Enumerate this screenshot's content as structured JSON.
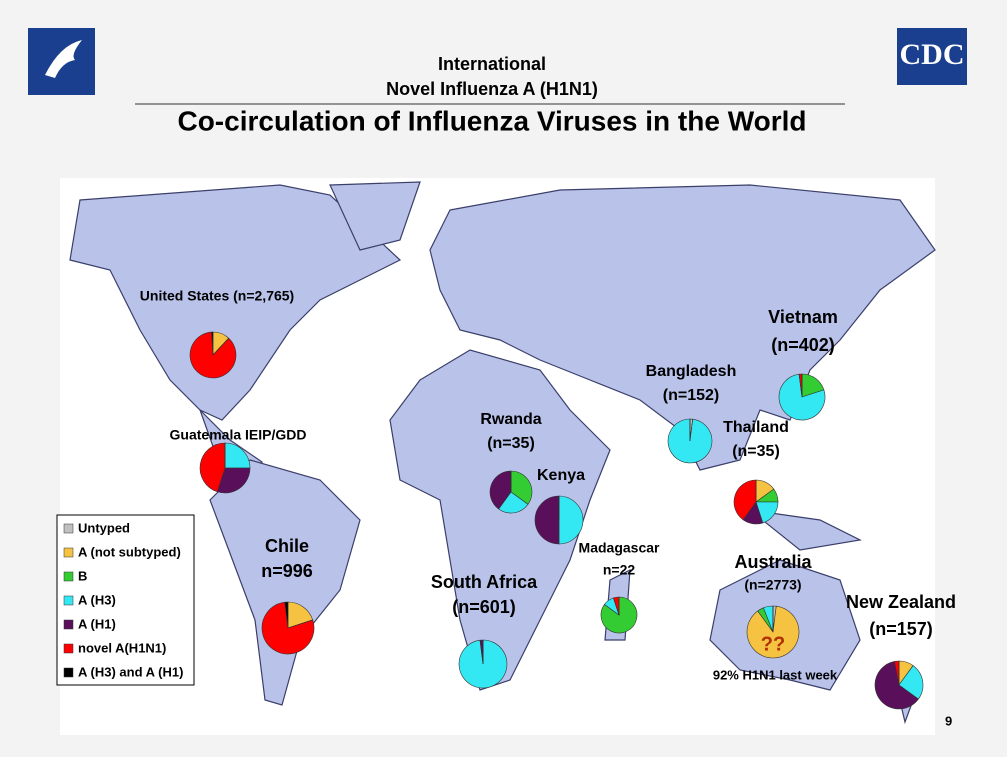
{
  "header": {
    "line1": "International",
    "line2": "Novel Influenza A (H1N1)",
    "title": "Co-circulation of Influenza Viruses in the World",
    "logo_text": "CDC"
  },
  "legend": [
    {
      "label": "Untyped",
      "color": "#c0c0c0"
    },
    {
      "label": "A (not subtyped)",
      "color": "#f5c242"
    },
    {
      "label": "B",
      "color": "#33cc33"
    },
    {
      "label": "A (H3)",
      "color": "#33e8f2"
    },
    {
      "label": "A (H1)",
      "color": "#5a0f5a"
    },
    {
      "label": "novel A(H1N1)",
      "color": "#ff0000"
    },
    {
      "label": "A (H3) and A (H1)",
      "color": "#000000"
    }
  ],
  "locations": [
    {
      "name": "United States (n=2,765)",
      "values": [
        0,
        12,
        0,
        0,
        0,
        87,
        1
      ]
    },
    {
      "name": "Guatemala IEIP/GDD",
      "values": [
        0,
        0,
        0,
        25,
        30,
        45,
        0
      ]
    },
    {
      "name": "Chile",
      "n": "n=996",
      "values": [
        0,
        20,
        0,
        0,
        0,
        78,
        2
      ]
    },
    {
      "name": "Rwanda",
      "n": "(n=35)",
      "values": [
        0,
        0,
        35,
        25,
        40,
        0,
        0
      ]
    },
    {
      "name": "Kenya",
      "values": [
        0,
        0,
        0,
        50,
        50,
        0,
        0
      ]
    },
    {
      "name": "South Africa",
      "n": "(n=601)",
      "values": [
        0,
        0,
        0,
        98,
        2,
        0,
        0
      ]
    },
    {
      "name": "Madagascar",
      "n": "n=22",
      "values": [
        0,
        0,
        85,
        10,
        0,
        5,
        0
      ]
    },
    {
      "name": "Bangladesh",
      "n": "(n=152)",
      "values": [
        2,
        0,
        0,
        98,
        0,
        0,
        0
      ]
    },
    {
      "name": "Vietnam",
      "n": "(n=402)",
      "values": [
        0,
        0,
        20,
        78,
        0,
        2,
        0
      ]
    },
    {
      "name": "Thailand",
      "n": "(n=35)",
      "values": [
        0,
        15,
        10,
        20,
        15,
        40,
        0
      ]
    },
    {
      "name": "Australia",
      "n": "(n=2773)",
      "note": "92% H1N1 last week",
      "mark": "??",
      "values": [
        2,
        88,
        4,
        6,
        0,
        0,
        0
      ]
    },
    {
      "name": "New Zealand",
      "n": "(n=157)",
      "values": [
        0,
        10,
        0,
        25,
        62,
        3,
        0
      ]
    }
  ],
  "page_number": "9"
}
